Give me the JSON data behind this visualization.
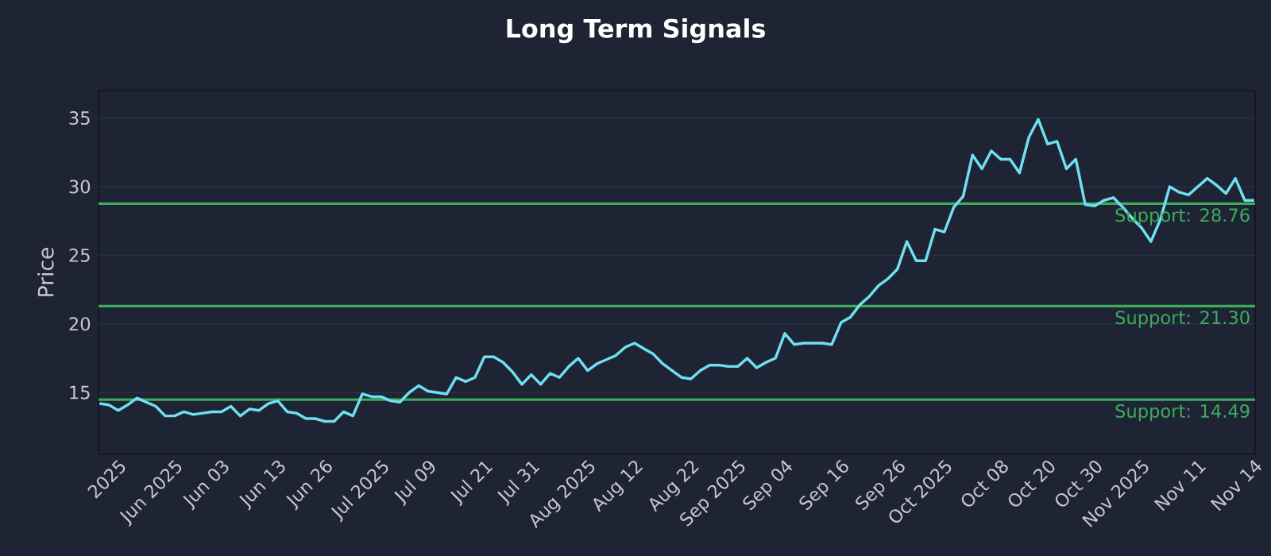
{
  "chart_data": {
    "type": "line",
    "title": "Long Term Signals",
    "ylabel": "Price",
    "categories": [
      null,
      null,
      "2025",
      null,
      null,
      null,
      null,
      null,
      "Jun 2025",
      null,
      null,
      null,
      null,
      "Jun 03",
      null,
      null,
      null,
      null,
      null,
      "Jun 13",
      null,
      null,
      null,
      null,
      "Jun 26",
      null,
      null,
      null,
      null,
      null,
      "Jul 2025",
      null,
      null,
      null,
      null,
      "Jul 09",
      null,
      null,
      null,
      null,
      null,
      "Jul 21",
      null,
      null,
      null,
      null,
      "Jul 31",
      null,
      null,
      null,
      null,
      null,
      "Aug 2025",
      null,
      null,
      null,
      null,
      "Aug 12",
      null,
      null,
      null,
      null,
      null,
      "Aug 22",
      null,
      null,
      null,
      null,
      "Sep 2025",
      null,
      null,
      null,
      null,
      "Sep 04",
      null,
      null,
      null,
      null,
      null,
      "Sep 16",
      null,
      null,
      null,
      null,
      null,
      "Sep 26",
      null,
      null,
      null,
      null,
      "Oct 2025",
      null,
      null,
      null,
      null,
      null,
      "Oct 08",
      null,
      null,
      null,
      null,
      "Oct 20",
      null,
      null,
      null,
      null,
      "Oct 30",
      null,
      null,
      null,
      null,
      "Nov 2025",
      null,
      null,
      null,
      null,
      null,
      "Nov 11",
      null,
      null,
      null,
      null,
      null,
      "Nov 14"
    ],
    "series": [
      {
        "color": "#6ee0f0",
        "values": [
          14.2,
          14.1,
          13.7,
          14.1,
          14.6,
          14.3,
          14.0,
          13.3,
          13.3,
          13.6,
          13.4,
          13.5,
          13.6,
          13.6,
          14.0,
          13.3,
          13.8,
          13.7,
          14.2,
          14.4,
          13.6,
          13.5,
          13.1,
          13.1,
          12.9,
          12.9,
          13.6,
          13.3,
          14.9,
          14.7,
          14.7,
          14.4,
          14.3,
          15.0,
          15.5,
          15.1,
          15.0,
          14.9,
          16.1,
          15.8,
          16.1,
          17.6,
          17.6,
          17.2,
          16.5,
          15.6,
          16.3,
          15.6,
          16.4,
          16.1,
          16.9,
          17.5,
          16.6,
          17.1,
          17.4,
          17.7,
          18.3,
          18.6,
          18.2,
          17.8,
          17.1,
          16.6,
          16.1,
          16.0,
          16.6,
          17.0,
          17.0,
          16.9,
          16.9,
          17.5,
          16.8,
          17.2,
          17.5,
          19.3,
          18.5,
          18.6,
          18.6,
          18.6,
          18.5,
          20.1,
          20.5,
          21.4,
          22.0,
          22.8,
          23.3,
          24.0,
          26.0,
          24.6,
          24.6,
          26.9,
          26.7,
          28.5,
          29.3,
          32.3,
          31.3,
          32.6,
          32.0,
          32.0,
          31.0,
          33.6,
          34.9,
          33.1,
          33.3,
          31.3,
          32.0,
          28.7,
          28.6,
          29.0,
          29.2,
          28.5,
          27.7,
          27.0,
          26.0,
          27.6,
          30.0,
          29.6,
          29.4,
          30.0,
          30.6,
          30.1,
          29.5,
          30.6,
          29.0,
          29.0
        ]
      }
    ],
    "ylim": [
      10.5,
      37
    ],
    "yticks": [
      15,
      20,
      25,
      30,
      35
    ],
    "ref_lines": [
      {
        "axis": "y",
        "value": 28.76,
        "label": "Support: 28.76",
        "color": "#3dab5c"
      },
      {
        "axis": "y",
        "value": 21.3,
        "label": "Support: 21.30",
        "color": "#3dab5c"
      },
      {
        "axis": "y",
        "value": 14.49,
        "label": "Support: 14.49",
        "color": "#3dab5c"
      }
    ],
    "grid": "y",
    "marker": "none",
    "line_style": "solid"
  }
}
